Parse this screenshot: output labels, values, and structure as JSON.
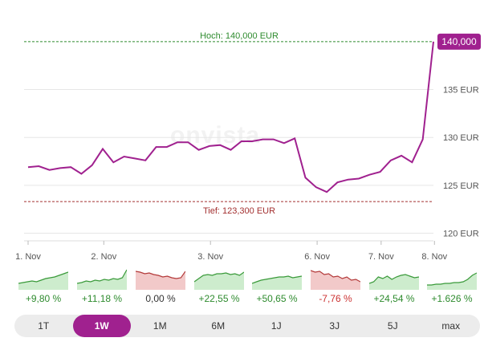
{
  "chart_data": {
    "type": "line",
    "watermark": "onvista",
    "x_ticks": [
      "1. Nov",
      "2. Nov",
      "3. Nov",
      "6. Nov",
      "7. Nov",
      "8. Nov"
    ],
    "y_ticks": [
      "120 EUR",
      "125 EUR",
      "130 EUR",
      "135 EUR"
    ],
    "ylim": [
      119.2,
      141.0
    ],
    "grid": true,
    "colors": {
      "line": "#a0218f",
      "high": "#2e8b2e",
      "low": "#a33030"
    },
    "high": {
      "label": "Hoch: 140,000 EUR",
      "value": 140.0
    },
    "low": {
      "label": "Tief: 123,300 EUR",
      "value": 123.3
    },
    "last_price": {
      "label": "140,000",
      "value": 140.0
    },
    "series": [
      {
        "values": [
          126.9,
          127.0,
          126.6,
          126.8,
          126.9,
          126.2,
          127.1,
          128.8,
          127.4,
          128.0,
          127.8,
          127.6,
          129.0,
          129.0,
          129.5,
          129.5,
          128.7,
          129.1,
          129.2,
          128.7,
          129.6,
          129.6,
          129.8,
          129.8,
          129.4,
          129.9,
          125.8,
          124.8,
          124.3,
          125.3,
          125.6,
          125.7,
          126.1,
          126.4,
          127.6,
          128.1,
          127.4,
          129.8,
          140.0
        ]
      }
    ]
  },
  "performance": [
    {
      "label": "+9,80 %",
      "trend": "pos",
      "points": [
        20,
        19,
        18,
        17,
        18,
        16,
        14,
        13,
        12,
        10,
        8,
        6
      ]
    },
    {
      "label": "+11,18 %",
      "trend": "pos",
      "points": [
        20,
        19,
        17,
        18,
        16,
        17,
        15,
        16,
        14,
        15,
        13,
        3
      ]
    },
    {
      "label": "0,00 %",
      "trend": "neg",
      "points": [
        5,
        6,
        8,
        7,
        9,
        10,
        12,
        11,
        13,
        14,
        13,
        5
      ]
    },
    {
      "label": "+22,55 %",
      "trend": "pos",
      "points": [
        18,
        14,
        10,
        9,
        10,
        8,
        8,
        7,
        9,
        8,
        10,
        6
      ]
    },
    {
      "label": "+50,65 %",
      "trend": "pos",
      "points": [
        20,
        18,
        16,
        15,
        14,
        13,
        12,
        12,
        11,
        13,
        12,
        11
      ]
    },
    {
      "label": "-7,76 %",
      "trend": "neg",
      "points": [
        4,
        6,
        5,
        9,
        8,
        12,
        11,
        14,
        12,
        16,
        15,
        18
      ]
    },
    {
      "label": "+24,54 %",
      "trend": "pos",
      "points": [
        20,
        18,
        12,
        14,
        11,
        15,
        12,
        10,
        9,
        11,
        13,
        12
      ]
    },
    {
      "label": "+1.626 %",
      "trend": "pos",
      "points": [
        22,
        22,
        21,
        21,
        20,
        20,
        19,
        19,
        18,
        15,
        10,
        7
      ]
    }
  ],
  "ranges": [
    {
      "label": "1T",
      "active": false
    },
    {
      "label": "1W",
      "active": true
    },
    {
      "label": "1M",
      "active": false
    },
    {
      "label": "6M",
      "active": false
    },
    {
      "label": "1J",
      "active": false
    },
    {
      "label": "3J",
      "active": false
    },
    {
      "label": "5J",
      "active": false
    },
    {
      "label": "max",
      "active": false
    }
  ]
}
